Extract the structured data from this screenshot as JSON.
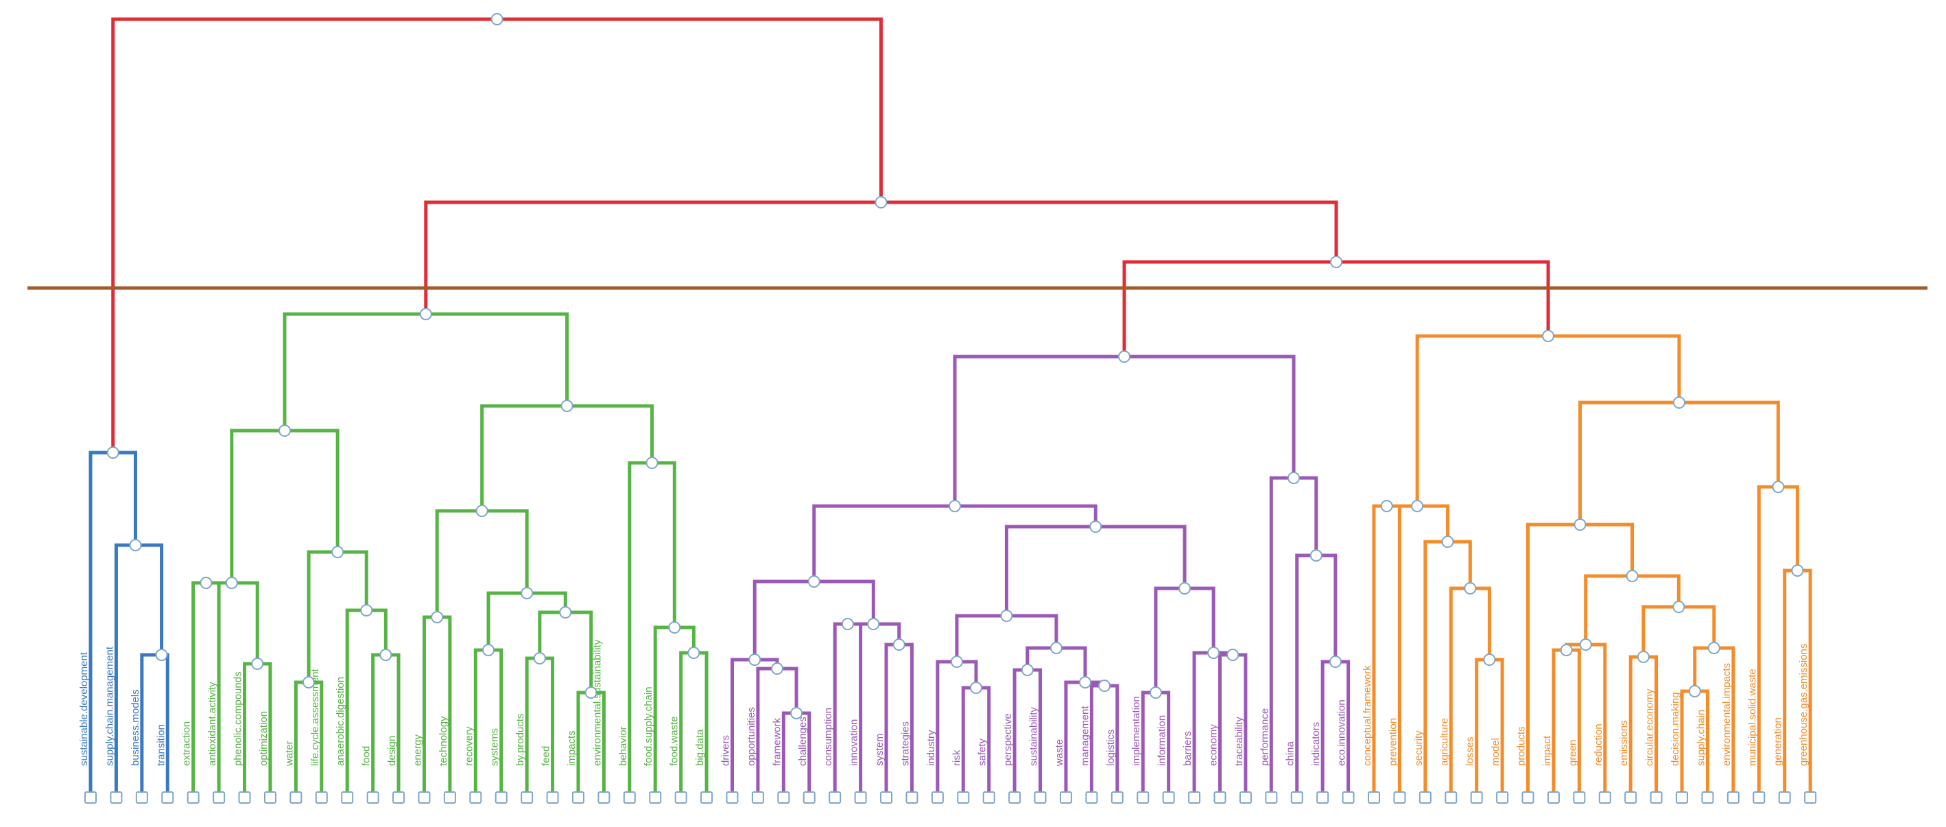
{
  "cluster_colors": {
    "blue": "#3a79c2",
    "green": "#56b445",
    "purple": "#9b59b6",
    "orange": "#f48c2a",
    "root": "#e02c36",
    "cut_line": "#a65a2a"
  },
  "leaves": [
    {
      "label": "sustainable.development",
      "cluster": "blue"
    },
    {
      "label": "supply.chain.management",
      "cluster": "blue"
    },
    {
      "label": "business.models",
      "cluster": "blue"
    },
    {
      "label": "transition",
      "cluster": "blue"
    },
    {
      "label": "extraction",
      "cluster": "green"
    },
    {
      "label": "antioxidant.activity",
      "cluster": "green"
    },
    {
      "label": "phenolic.compounds",
      "cluster": "green"
    },
    {
      "label": "optimization",
      "cluster": "green"
    },
    {
      "label": "water",
      "cluster": "green"
    },
    {
      "label": "life.cycle.assessment",
      "cluster": "green"
    },
    {
      "label": "anaerobic.digestion",
      "cluster": "green"
    },
    {
      "label": "food",
      "cluster": "green"
    },
    {
      "label": "design",
      "cluster": "green"
    },
    {
      "label": "energy",
      "cluster": "green"
    },
    {
      "label": "technology",
      "cluster": "green"
    },
    {
      "label": "recovery",
      "cluster": "green"
    },
    {
      "label": "systems",
      "cluster": "green"
    },
    {
      "label": "by.products",
      "cluster": "green"
    },
    {
      "label": "feed",
      "cluster": "green"
    },
    {
      "label": "impacts",
      "cluster": "green"
    },
    {
      "label": "environmental.sustainability",
      "cluster": "green"
    },
    {
      "label": "behavior",
      "cluster": "green"
    },
    {
      "label": "food.supply.chain",
      "cluster": "green"
    },
    {
      "label": "food.waste",
      "cluster": "green"
    },
    {
      "label": "big.data",
      "cluster": "green"
    },
    {
      "label": "drivers",
      "cluster": "purple"
    },
    {
      "label": "opportunities",
      "cluster": "purple"
    },
    {
      "label": "framework",
      "cluster": "purple"
    },
    {
      "label": "challenges",
      "cluster": "purple"
    },
    {
      "label": "consumption",
      "cluster": "purple"
    },
    {
      "label": "innovation",
      "cluster": "purple"
    },
    {
      "label": "system",
      "cluster": "purple"
    },
    {
      "label": "strategies",
      "cluster": "purple"
    },
    {
      "label": "industry",
      "cluster": "purple"
    },
    {
      "label": "risk",
      "cluster": "purple"
    },
    {
      "label": "safety",
      "cluster": "purple"
    },
    {
      "label": "perspective",
      "cluster": "purple"
    },
    {
      "label": "sustainability",
      "cluster": "purple"
    },
    {
      "label": "waste",
      "cluster": "purple"
    },
    {
      "label": "management",
      "cluster": "purple"
    },
    {
      "label": "logistics",
      "cluster": "purple"
    },
    {
      "label": "implementation",
      "cluster": "purple"
    },
    {
      "label": "information",
      "cluster": "purple"
    },
    {
      "label": "barriers",
      "cluster": "purple"
    },
    {
      "label": "economy",
      "cluster": "purple"
    },
    {
      "label": "traceability",
      "cluster": "purple"
    },
    {
      "label": "performance",
      "cluster": "purple"
    },
    {
      "label": "china",
      "cluster": "purple"
    },
    {
      "label": "indicators",
      "cluster": "purple"
    },
    {
      "label": "eco.innovation",
      "cluster": "purple"
    },
    {
      "label": "conceptual.framework",
      "cluster": "orange"
    },
    {
      "label": "prevention",
      "cluster": "orange"
    },
    {
      "label": "security",
      "cluster": "orange"
    },
    {
      "label": "agriculture",
      "cluster": "orange"
    },
    {
      "label": "losses",
      "cluster": "orange"
    },
    {
      "label": "model",
      "cluster": "orange"
    },
    {
      "label": "products",
      "cluster": "orange"
    },
    {
      "label": "impact",
      "cluster": "orange"
    },
    {
      "label": "green",
      "cluster": "orange"
    },
    {
      "label": "reduction",
      "cluster": "orange"
    },
    {
      "label": "emissions",
      "cluster": "orange"
    },
    {
      "label": "circular.economy",
      "cluster": "orange"
    },
    {
      "label": "decision.making",
      "cluster": "orange"
    },
    {
      "label": "supply.chain",
      "cluster": "orange"
    },
    {
      "label": "environmental.impacts",
      "cluster": "orange"
    },
    {
      "label": "municipal.solid.waste",
      "cluster": "orange"
    },
    {
      "label": "generation",
      "cluster": "orange"
    },
    {
      "label": "greenhouse.gas.emissions",
      "cluster": "orange"
    }
  ]
}
